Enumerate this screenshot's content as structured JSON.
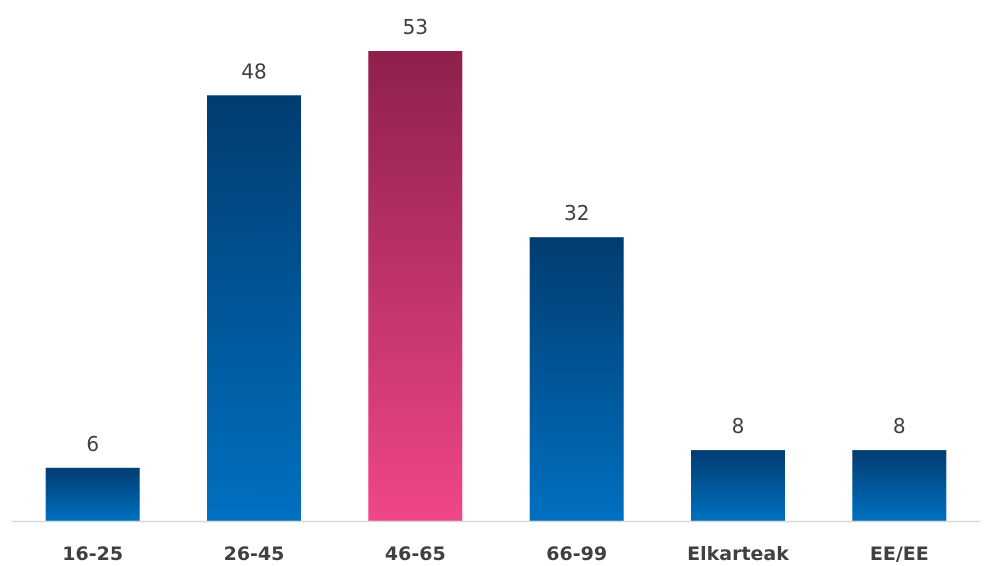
{
  "chart_data": {
    "type": "bar",
    "title": "",
    "xlabel": "",
    "ylabel": "",
    "categories": [
      "16-25",
      "26-45",
      "46-65",
      "66-99",
      "Elkarteak",
      "EE/EE"
    ],
    "values": [
      6,
      48,
      53,
      32,
      8,
      8
    ],
    "highlight_index": 2,
    "ylim": [
      0,
      53
    ],
    "grid": false,
    "legend": "none",
    "data_labels": true
  },
  "colors": {
    "bar_top": "#013c70",
    "bar_bottom": "#0070c0",
    "highlight_top": "#8e204c",
    "highlight_bottom": "#f0468a",
    "axis": "#d9d9d9",
    "text": "#404040"
  }
}
